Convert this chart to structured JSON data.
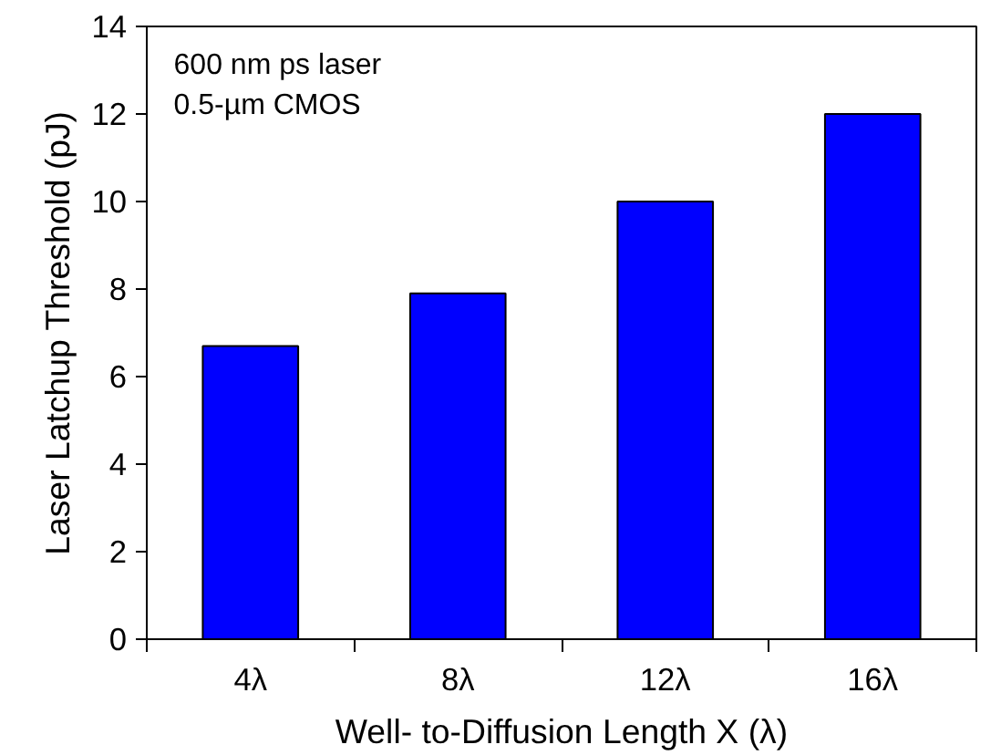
{
  "chart_data": {
    "type": "bar",
    "xlabel": "Well- to-Diffusion Length X (λ)",
    "ylabel": "Laser Latchup Threshold (pJ)",
    "categories": [
      "4λ",
      "8λ",
      "12λ",
      "16λ"
    ],
    "series": [
      {
        "color": "#0000ff",
        "values": [
          6.7,
          7.9,
          10.0,
          12.0
        ]
      }
    ],
    "ylim": [
      0,
      14
    ],
    "yticks": [
      0,
      2,
      4,
      6,
      8,
      10,
      12,
      14
    ],
    "grid": false,
    "annotations": [
      "600 nm ps laser",
      "0.5-µm CMOS"
    ]
  }
}
